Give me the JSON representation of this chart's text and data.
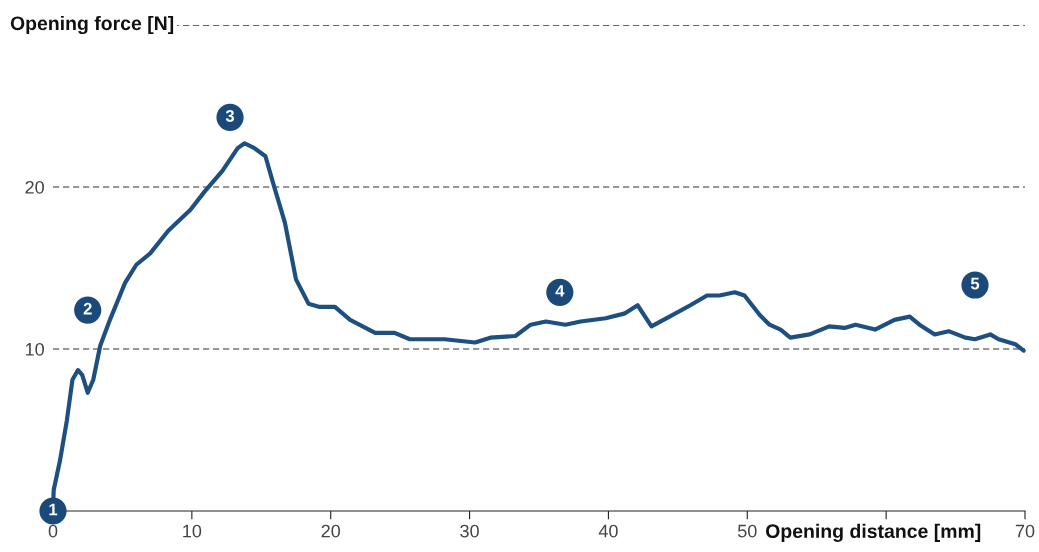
{
  "chart_data": {
    "type": "line",
    "ylabel": "Opening force [N]",
    "xlabel": "Opening distance [mm]",
    "xlim": [
      0,
      70
    ],
    "ylim": [
      0,
      30
    ],
    "xticks": [
      0,
      10,
      20,
      30,
      40,
      50,
      {
        "value": 60,
        "label": null
      },
      70
    ],
    "yticks": [
      10,
      20,
      {
        "value": 30,
        "label": null
      }
    ],
    "grid": "y",
    "marker": "none",
    "line_style": "solid",
    "series": [
      {
        "color": "#1d4f80",
        "x": [
          0,
          0.05,
          0.5,
          1.0,
          1.4,
          1.8,
          2.1,
          2.5,
          2.9,
          3.4,
          4.1,
          5.2,
          6.0,
          7.0,
          8.3,
          9.9,
          10.9,
          12.2,
          13.3,
          13.8,
          14.5,
          15.3,
          15.9,
          16.7,
          17.5,
          18.4,
          19.2,
          20.3,
          21.4,
          23.2,
          24.6,
          25.7,
          27.2,
          28.2,
          30.4,
          31.5,
          33.3,
          34.4,
          35.5,
          36.9,
          38.0,
          39.8,
          41.2,
          42.1,
          43.1,
          44.4,
          45.9,
          47.1,
          48.0,
          49.1,
          49.8,
          50.9,
          51.6,
          52.4,
          53.1,
          54.5,
          55.9,
          57.0,
          57.8,
          59.2,
          60.6,
          61.7,
          62.4,
          63.5,
          64.5,
          65.7,
          66.4,
          67.5,
          68.1,
          69.3,
          69.9
        ],
        "values": [
          0,
          1.3,
          3.1,
          5.6,
          8.1,
          8.7,
          8.4,
          7.3,
          8.1,
          10.2,
          11.8,
          14.1,
          15.2,
          15.9,
          17.3,
          18.6,
          19.7,
          21.0,
          22.4,
          22.7,
          22.4,
          21.9,
          20.1,
          17.8,
          14.3,
          12.8,
          12.6,
          12.6,
          11.8,
          11.0,
          11.0,
          10.6,
          10.6,
          10.6,
          10.4,
          10.7,
          10.8,
          11.5,
          11.7,
          11.5,
          11.7,
          11.9,
          12.2,
          12.7,
          11.4,
          12.0,
          12.7,
          13.3,
          13.3,
          13.5,
          13.3,
          12.1,
          11.5,
          11.2,
          10.7,
          10.9,
          11.4,
          11.3,
          11.5,
          11.2,
          11.8,
          12.0,
          11.5,
          10.9,
          11.1,
          10.7,
          10.6,
          10.9,
          10.6,
          10.3,
          9.9
        ]
      }
    ],
    "annotations": [
      {
        "text": "1",
        "x": 0,
        "y": 0
      },
      {
        "text": "2",
        "x": 2.5,
        "y": 12.4
      },
      {
        "text": "3",
        "x": 12.75,
        "y": 24.3
      },
      {
        "text": "4",
        "x": 36.5,
        "y": 13.5
      },
      {
        "text": "5",
        "x": 66.4,
        "y": 13.95
      }
    ]
  }
}
